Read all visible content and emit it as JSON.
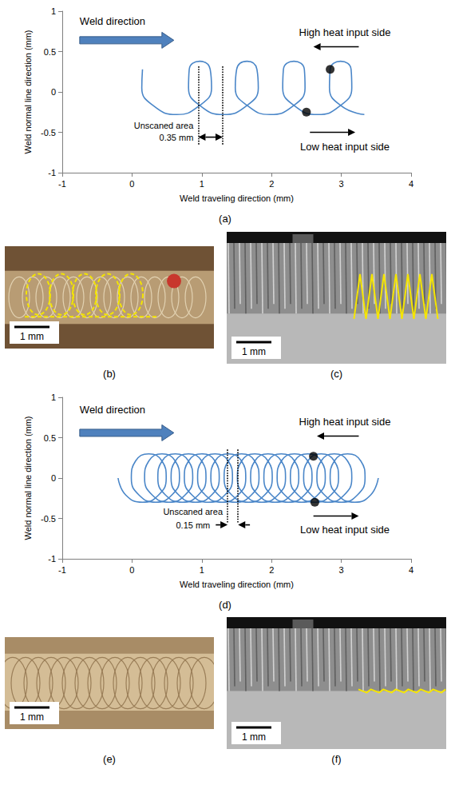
{
  "chart_data": [
    {
      "label": "(a)",
      "type": "line",
      "x_label": "Weld traveling direction (mm)",
      "y_label": "Weld normal line direction (mm)",
      "xlim": [
        -1,
        4
      ],
      "xticks": [
        -1,
        0,
        1,
        2,
        3,
        4
      ],
      "ylim": [
        -1,
        1
      ],
      "yticks": [
        -1,
        -0.5,
        0,
        0.5,
        1
      ],
      "grid": false,
      "series": [
        {
          "type": "line",
          "color": "#4a86c8",
          "x": [
            0.15,
            0.14,
            0.32,
            0.64,
            0.95,
            1.14,
            1.12,
            0.97,
            0.82,
            0.81,
            0.99,
            1.31,
            1.63,
            1.81,
            1.79,
            1.65,
            1.5,
            1.48,
            1.67,
            1.98,
            2.3,
            2.48,
            2.47,
            2.32,
            2.17,
            2.16,
            2.34,
            2.66,
            2.97,
            3.15,
            3.14,
            2.99,
            2.84,
            2.83,
            3.01,
            3.33
          ],
          "y": [
            0.28,
            0.05,
            -0.18,
            -0.28,
            -0.18,
            0.05,
            0.28,
            0.38,
            0.28,
            0.05,
            -0.18,
            -0.28,
            -0.18,
            0.05,
            0.28,
            0.38,
            0.28,
            0.05,
            -0.18,
            -0.28,
            -0.18,
            0.05,
            0.28,
            0.38,
            0.28,
            0.05,
            -0.18,
            -0.28,
            -0.18,
            0.05,
            0.28,
            0.38,
            0.28,
            0.05,
            -0.18,
            -0.28
          ]
        },
        {
          "type": "scatter",
          "marker": "circle",
          "color": "#000000",
          "x": [
            2.84,
            2.5
          ],
          "y": [
            0.28,
            -0.25
          ]
        }
      ],
      "unscanned_area": {
        "x": [
          0.95,
          1.3
        ],
        "label": "Unscaned area",
        "width_label": "0.35 mm",
        "line_style": "dotted"
      },
      "annotations": [
        "Weld direction",
        "High heat input side",
        "Low heat input side"
      ]
    },
    {
      "label": "(d)",
      "type": "line",
      "x_label": "Weld traveling direction (mm)",
      "y_label": "Weld normal line direction (mm)",
      "xlim": [
        -1,
        4
      ],
      "xticks": [
        -1,
        0,
        1,
        2,
        3,
        4
      ],
      "ylim": [
        -1,
        1
      ],
      "yticks": [
        -1,
        -0.5,
        0,
        0.5,
        1
      ],
      "grid": false,
      "series": [
        {
          "type": "line",
          "color": "#4a86c8",
          "x": [
            -0.2,
            -0.09,
            0.15,
            0.38,
            0.49,
            0.43,
            0.24,
            0.05,
            -0.01,
            0.1,
            0.34,
            0.57,
            0.68,
            0.62,
            0.43,
            0.24,
            0.18,
            0.29,
            0.53,
            0.76,
            0.87,
            0.81,
            0.62,
            0.43,
            0.37,
            0.48,
            0.72,
            0.95,
            1.06,
            1.0,
            0.81,
            0.62,
            0.56,
            0.67,
            0.91,
            1.14,
            1.25,
            1.19,
            1.0,
            0.81,
            0.75,
            0.86,
            1.1,
            1.33,
            1.44,
            1.38,
            1.19,
            1.0,
            0.94,
            1.05,
            1.29,
            1.52,
            1.63,
            1.57,
            1.38,
            1.19,
            1.13,
            1.24,
            1.48,
            1.71,
            1.82,
            1.76,
            1.57,
            1.38,
            1.32,
            1.43,
            1.67,
            1.9,
            2.01,
            1.95,
            1.76,
            1.57,
            1.51,
            1.62,
            1.86,
            2.09,
            2.2,
            2.14,
            1.95,
            1.76,
            1.7,
            1.81,
            2.05,
            2.28,
            2.39,
            2.33,
            2.14,
            1.95,
            1.89,
            2.0,
            2.24,
            2.47,
            2.58,
            2.52,
            2.33,
            2.14,
            2.08,
            2.19,
            2.43,
            2.66,
            2.77,
            2.71,
            2.52,
            2.33,
            2.27,
            2.38,
            2.62,
            2.85,
            2.96,
            2.9,
            2.71,
            2.52,
            2.46,
            2.57,
            2.81,
            3.04,
            3.15,
            3.09,
            2.9,
            2.71,
            2.65,
            2.76,
            3.0,
            3.23,
            3.34,
            3.28,
            3.09,
            2.9,
            2.84,
            2.95,
            3.19,
            3.42,
            3.53
          ],
          "y": [
            0,
            -0.21,
            -0.3,
            -0.21,
            0,
            0.21,
            0.3,
            0.21,
            0,
            -0.21,
            -0.3,
            -0.21,
            0,
            0.21,
            0.3,
            0.21,
            0,
            -0.21,
            -0.3,
            -0.21,
            0,
            0.21,
            0.3,
            0.21,
            0,
            -0.21,
            -0.3,
            -0.21,
            0,
            0.21,
            0.3,
            0.21,
            0,
            -0.21,
            -0.3,
            -0.21,
            0,
            0.21,
            0.3,
            0.21,
            0,
            -0.21,
            -0.3,
            -0.21,
            0,
            0.21,
            0.3,
            0.21,
            0,
            -0.21,
            -0.3,
            -0.21,
            0,
            0.21,
            0.3,
            0.21,
            0,
            -0.21,
            -0.3,
            -0.21,
            0,
            0.21,
            0.3,
            0.21,
            0,
            -0.21,
            -0.3,
            -0.21,
            0,
            0.21,
            0.3,
            0.21,
            0,
            -0.21,
            -0.3,
            -0.21,
            0,
            0.21,
            0.3,
            0.21,
            0,
            -0.21,
            -0.3,
            -0.21,
            0,
            0.21,
            0.3,
            0.21,
            0,
            -0.21,
            -0.3,
            -0.21,
            0,
            0.21,
            0.3,
            0.21,
            0,
            -0.21,
            -0.3,
            -0.21,
            0,
            0.21,
            0.3,
            0.21,
            0,
            -0.21,
            -0.3,
            -0.21,
            0,
            0.21,
            0.3,
            0.21,
            0,
            -0.21,
            -0.3,
            -0.21,
            0,
            0.21,
            0.3,
            0.21,
            0,
            -0.21,
            -0.3,
            -0.21,
            0,
            0.21,
            0.3,
            0.21,
            0,
            -0.21,
            -0.3,
            -0.21,
            0
          ]
        },
        {
          "type": "scatter",
          "marker": "circle",
          "color": "#000000",
          "x": [
            2.6,
            2.62
          ],
          "y": [
            0.27,
            -0.3
          ]
        }
      ],
      "unscanned_area": {
        "x": [
          1.37,
          1.52
        ],
        "label": "Unscaned area",
        "width_label": "0.15 mm",
        "line_style": "dotted"
      },
      "annotations": [
        "Weld direction",
        "High heat input side",
        "Low heat input side"
      ]
    }
  ],
  "photos": [
    {
      "label": "(b)",
      "scale_bar": "1 mm"
    },
    {
      "label": "(c)",
      "scale_bar": "1 mm"
    },
    {
      "label": "(e)",
      "scale_bar": "1 mm"
    },
    {
      "label": "(f)",
      "scale_bar": "1 mm"
    }
  ]
}
